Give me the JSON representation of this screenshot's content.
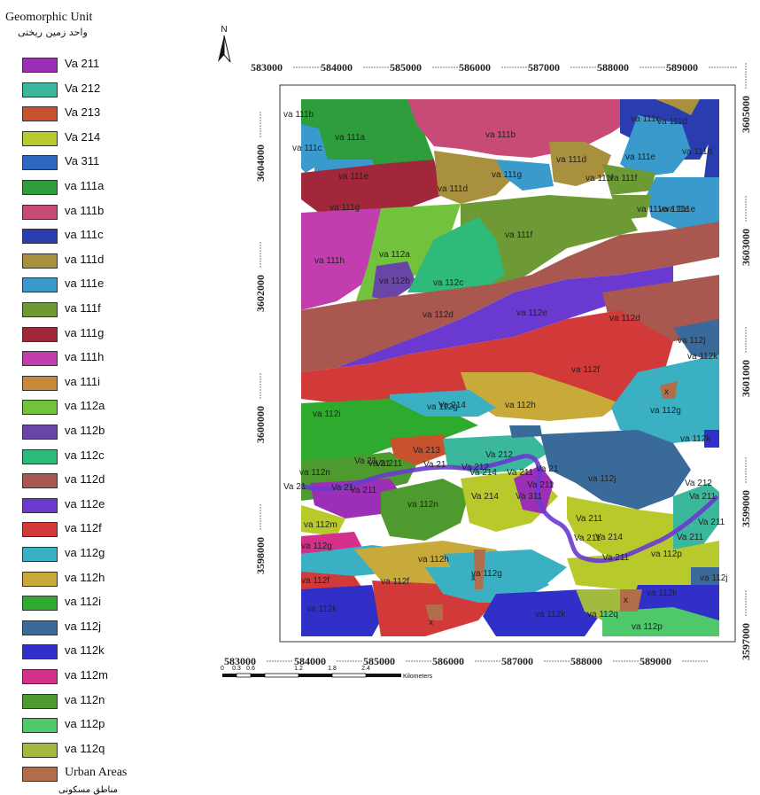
{
  "legend": {
    "title": "Geomorphic Unit",
    "subtitle": "واحد زمین ریختی",
    "urban_subtitle": "مناطق مسکونی",
    "items": [
      {
        "label": "Va 211",
        "color": "#9B2FB5"
      },
      {
        "label": "Va 212",
        "color": "#3BB89B"
      },
      {
        "label": "Va 213",
        "color": "#C8522E"
      },
      {
        "label": "Va 214",
        "color": "#B8C92B"
      },
      {
        "label": "Va 311",
        "color": "#2F66C2"
      },
      {
        "label": "va 111a",
        "color": "#2E9E3C"
      },
      {
        "label": "va 111b",
        "color": "#C84A76"
      },
      {
        "label": "va 111c",
        "color": "#2A3DB0"
      },
      {
        "label": "va 111d",
        "color": "#A8903E"
      },
      {
        "label": "va 111e",
        "color": "#3A9ACB"
      },
      {
        "label": "va 111f",
        "color": "#6E9A35"
      },
      {
        "label": "va 111g",
        "color": "#A0283A"
      },
      {
        "label": "va 111h",
        "color": "#C23EAE"
      },
      {
        "label": "va 111i",
        "color": "#C88A3A"
      },
      {
        "label": "va 112a",
        "color": "#72C23E"
      },
      {
        "label": "va 112b",
        "color": "#6A45A8"
      },
      {
        "label": "va 112c",
        "color": "#2EBA78"
      },
      {
        "label": "va 112d",
        "color": "#A8584E"
      },
      {
        "label": "va 112e",
        "color": "#6A3AD0"
      },
      {
        "label": "va 112f",
        "color": "#D23A3A"
      },
      {
        "label": "va 112g",
        "color": "#3AB0C2"
      },
      {
        "label": "va 112h",
        "color": "#C8AA3A"
      },
      {
        "label": "va 112i",
        "color": "#2EAA2E"
      },
      {
        "label": "va 112j",
        "color": "#3A6A9A"
      },
      {
        "label": "va 112k",
        "color": "#3030C8"
      },
      {
        "label": "va 112m",
        "color": "#D2308A"
      },
      {
        "label": "va 112n",
        "color": "#4E9A2E"
      },
      {
        "label": "va 112p",
        "color": "#4EC86A"
      },
      {
        "label": "va 112q",
        "color": "#A2BA3E"
      },
      {
        "label": "Urban Areas",
        "color": "#B06E4A"
      }
    ]
  },
  "north_arrow": {
    "label": "N"
  },
  "axes": {
    "x_ticks": [
      "583000",
      "584000",
      "585000",
      "586000",
      "587000",
      "588000",
      "589000"
    ],
    "y_ticks_left": [
      "3604000",
      "3602000",
      "3600000",
      "3598000"
    ],
    "y_ticks_right": [
      "3605000",
      "3603000",
      "3601000",
      "3599000",
      "3597000"
    ]
  },
  "scale_bar": {
    "ticks": [
      "0",
      "0.3",
      "0.6",
      "1.2",
      "1.8",
      "2.4"
    ],
    "unit": "Kilometers"
  },
  "map_labels": [
    "va 111b",
    "va 111a",
    "va 111b",
    "va 111d",
    "va 111c",
    "va 111d",
    "va 111c",
    "va 111e",
    "va 111g",
    "va 111d",
    "va 111e",
    "va 111d",
    "va 111f",
    "va 111e",
    "va 111e",
    "va 111g",
    "va 111f",
    "va 111f",
    "va 111e",
    "va 111h",
    "va 112a",
    "va 112b",
    "va 112c",
    "va 112d",
    "va 112e",
    "va 112d",
    "va 112j",
    "va 112k",
    "va 112f",
    "va 112g",
    "va 112h",
    "va 112g",
    "va 112i",
    "Va 214",
    "va 112k",
    "Va 213",
    "Va 212",
    "va 112n",
    "Va 214",
    "Va 211",
    "va 112j",
    "Va 212",
    "va 112n",
    "Va 214",
    "Va 311",
    "Va 211",
    "va 112m",
    "Va 214",
    "Va 211",
    "va 112g",
    "va 112h",
    "va 112p",
    "va 112f",
    "va 112g",
    "va 112j",
    "va 112k",
    "va 112f",
    "va 112k",
    "va 112q",
    "va 112k",
    "va 112p",
    "Va 212",
    "Va 211",
    "Va 211",
    "Va 211",
    "Va 211",
    "Va 211",
    "Va 211",
    "Va 21",
    "Va 21",
    "Va 21",
    "Va 21",
    "Va 21",
    "Va 211",
    "Va 21",
    "x",
    "x",
    "x",
    "x"
  ]
}
